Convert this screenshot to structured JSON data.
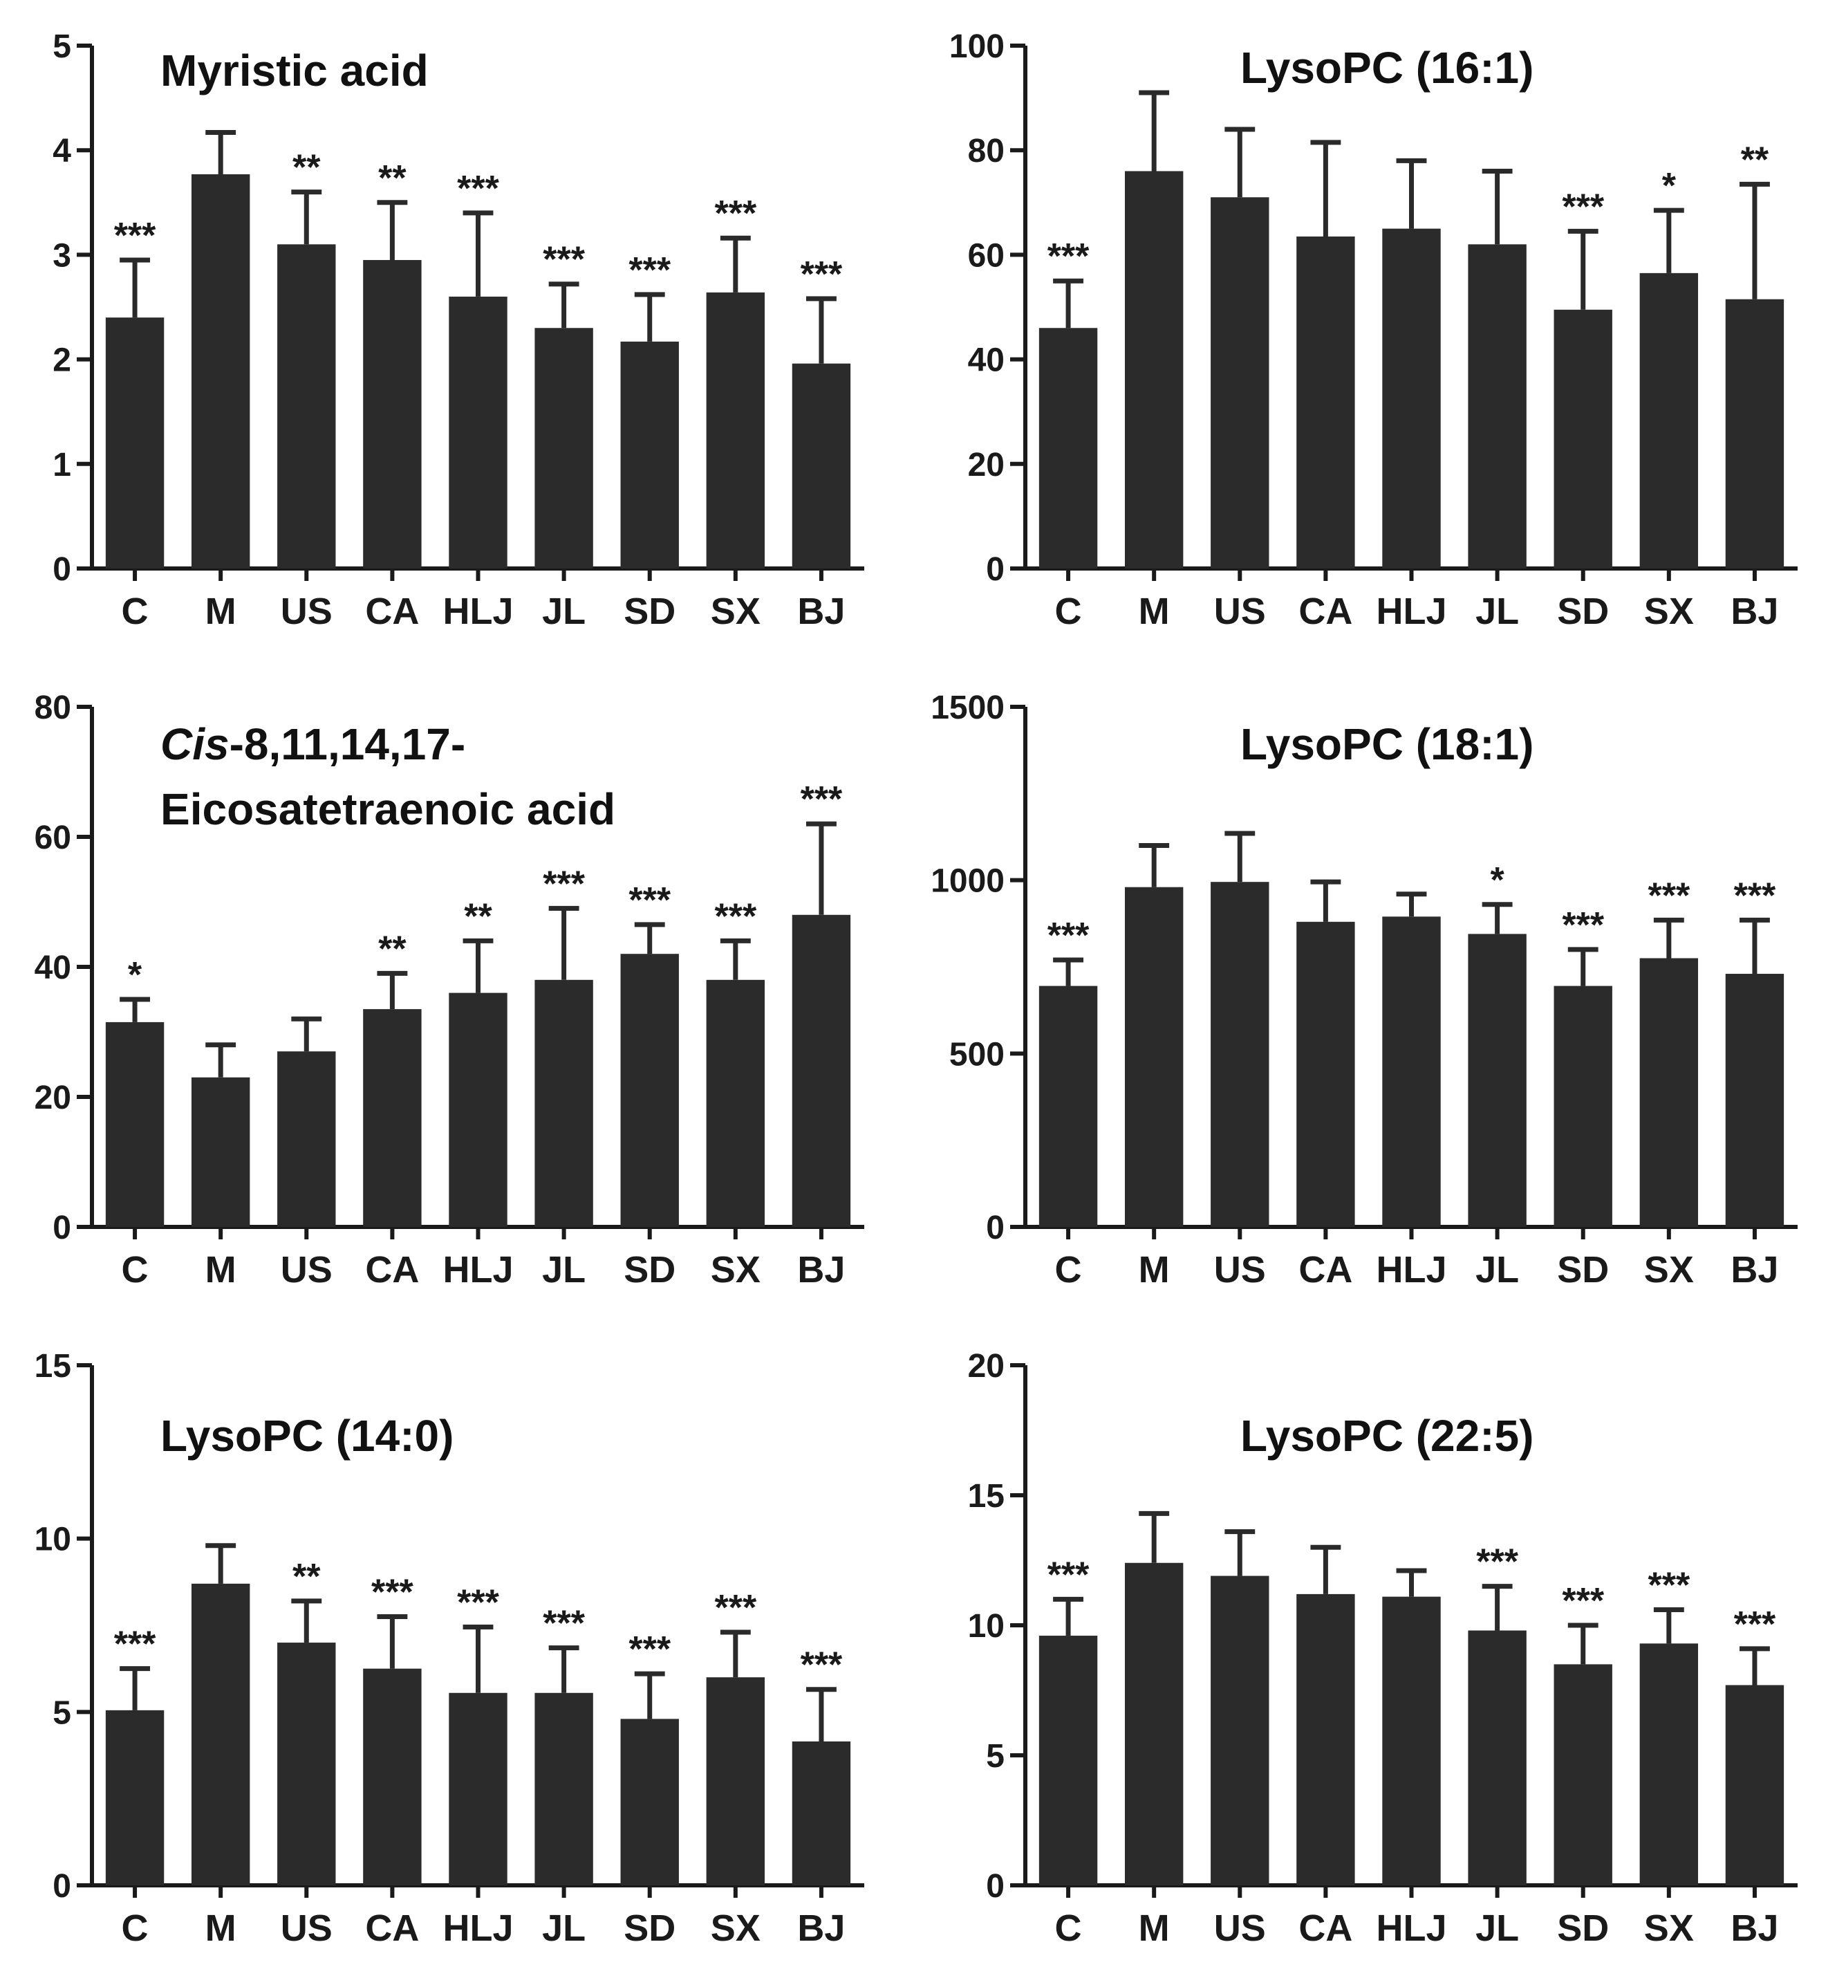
{
  "colors": {
    "bar": "#2b2b2b",
    "axis": "#1a1a1a",
    "background": "#ffffff"
  },
  "chart_data": [
    {
      "type": "bar",
      "title_lines": [
        "Myristic acid"
      ],
      "categories": [
        "C",
        "M",
        "US",
        "CA",
        "HLJ",
        "JL",
        "SD",
        "SX",
        "BJ"
      ],
      "values": [
        2.4,
        3.77,
        3.1,
        2.95,
        2.6,
        2.3,
        2.17,
        2.64,
        1.96
      ],
      "errors": [
        0.55,
        0.4,
        0.5,
        0.55,
        0.8,
        0.42,
        0.45,
        0.52,
        0.62
      ],
      "significance": [
        "***",
        "",
        "**",
        "**",
        "***",
        "***",
        "***",
        "***",
        "***"
      ],
      "ylim": [
        0,
        5
      ],
      "yticks": [
        "0",
        "1",
        "2",
        "3",
        "4",
        "5"
      ],
      "xlabel": "",
      "ylabel": ""
    },
    {
      "type": "bar",
      "title_lines": [
        "LysoPC  (16:1)"
      ],
      "categories": [
        "C",
        "M",
        "US",
        "CA",
        "HLJ",
        "JL",
        "SD",
        "SX",
        "BJ"
      ],
      "values": [
        46,
        76,
        71,
        63.5,
        65,
        62,
        49.5,
        56.5,
        51.5
      ],
      "errors": [
        9,
        15,
        13,
        18,
        13,
        14,
        15,
        12,
        22
      ],
      "significance": [
        "***",
        "",
        "",
        "",
        "",
        "",
        "***",
        "*",
        "**"
      ],
      "ylim": [
        0,
        100
      ],
      "yticks": [
        "0",
        "20",
        "40",
        "60",
        "80",
        "100"
      ],
      "xlabel": "",
      "ylabel": ""
    },
    {
      "type": "bar",
      "title_lines": [
        "Cis-8,11,14,17-",
        "Eicosatetraenoic  acid"
      ],
      "title_italic_prefix": "Cis",
      "categories": [
        "C",
        "M",
        "US",
        "CA",
        "HLJ",
        "JL",
        "SD",
        "SX",
        "BJ"
      ],
      "values": [
        31.5,
        23,
        27,
        33.5,
        36,
        38,
        42,
        38,
        48
      ],
      "errors": [
        3.5,
        5,
        5,
        5.5,
        8,
        11,
        4.5,
        6,
        14
      ],
      "significance": [
        "*",
        "",
        "",
        "**",
        "**",
        "***",
        "***",
        "***",
        "***"
      ],
      "ylim": [
        0,
        80
      ],
      "yticks": [
        "0",
        "20",
        "40",
        "60",
        "80"
      ],
      "xlabel": "",
      "ylabel": ""
    },
    {
      "type": "bar",
      "title_lines": [
        "LysoPC  (18:1)"
      ],
      "categories": [
        "C",
        "M",
        "US",
        "CA",
        "HLJ",
        "JL",
        "SD",
        "SX",
        "BJ"
      ],
      "values": [
        695,
        980,
        995,
        880,
        895,
        845,
        695,
        775,
        730
      ],
      "errors": [
        75,
        120,
        140,
        115,
        65,
        85,
        105,
        110,
        155
      ],
      "significance": [
        "***",
        "",
        "",
        "",
        "",
        "*",
        "***",
        "***",
        "***"
      ],
      "ylim": [
        0,
        1500
      ],
      "yticks": [
        "0",
        "500",
        "1000",
        "1500"
      ],
      "xlabel": "",
      "ylabel": ""
    },
    {
      "type": "bar",
      "title_lines": [
        "LysoPC  (14:0)"
      ],
      "categories": [
        "C",
        "M",
        "US",
        "CA",
        "HLJ",
        "JL",
        "SD",
        "SX",
        "BJ"
      ],
      "values": [
        5.05,
        8.7,
        7.0,
        6.25,
        5.55,
        5.55,
        4.8,
        6.0,
        4.15
      ],
      "errors": [
        1.2,
        1.1,
        1.2,
        1.5,
        1.9,
        1.3,
        1.3,
        1.3,
        1.5
      ],
      "significance": [
        "***",
        "",
        "**",
        "***",
        "***",
        "***",
        "***",
        "***",
        "***"
      ],
      "ylim": [
        0,
        15
      ],
      "yticks": [
        "0",
        "5",
        "10",
        "15"
      ],
      "xlabel": "",
      "ylabel": ""
    },
    {
      "type": "bar",
      "title_lines": [
        "LysoPC  (22:5)"
      ],
      "categories": [
        "C",
        "M",
        "US",
        "CA",
        "HLJ",
        "JL",
        "SD",
        "SX",
        "BJ"
      ],
      "values": [
        9.6,
        12.4,
        11.9,
        11.2,
        11.1,
        9.8,
        8.5,
        9.3,
        7.7
      ],
      "errors": [
        1.4,
        1.9,
        1.7,
        1.8,
        1.0,
        1.7,
        1.5,
        1.3,
        1.4
      ],
      "significance": [
        "***",
        "",
        "",
        "",
        "",
        "***",
        "***",
        "***",
        "***"
      ],
      "ylim": [
        0,
        20
      ],
      "yticks": [
        "0",
        "5",
        "10",
        "15",
        "20"
      ],
      "xlabel": "",
      "ylabel": ""
    }
  ]
}
